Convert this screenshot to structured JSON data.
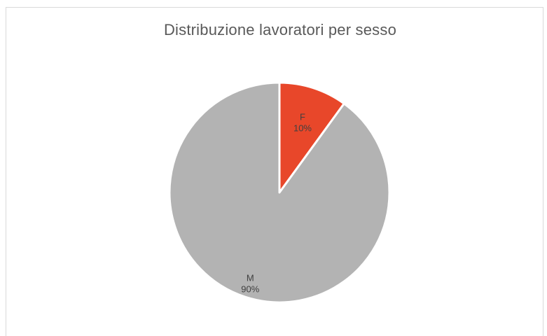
{
  "chart_data": {
    "type": "pie",
    "title": "Distribuzione lavoratori per sesso",
    "categories": [
      "F",
      "M"
    ],
    "values": [
      10,
      90
    ],
    "labels": [
      "10%",
      "90%"
    ],
    "colors": [
      "#e8472a",
      "#b3b3b3"
    ],
    "legend": "none"
  }
}
